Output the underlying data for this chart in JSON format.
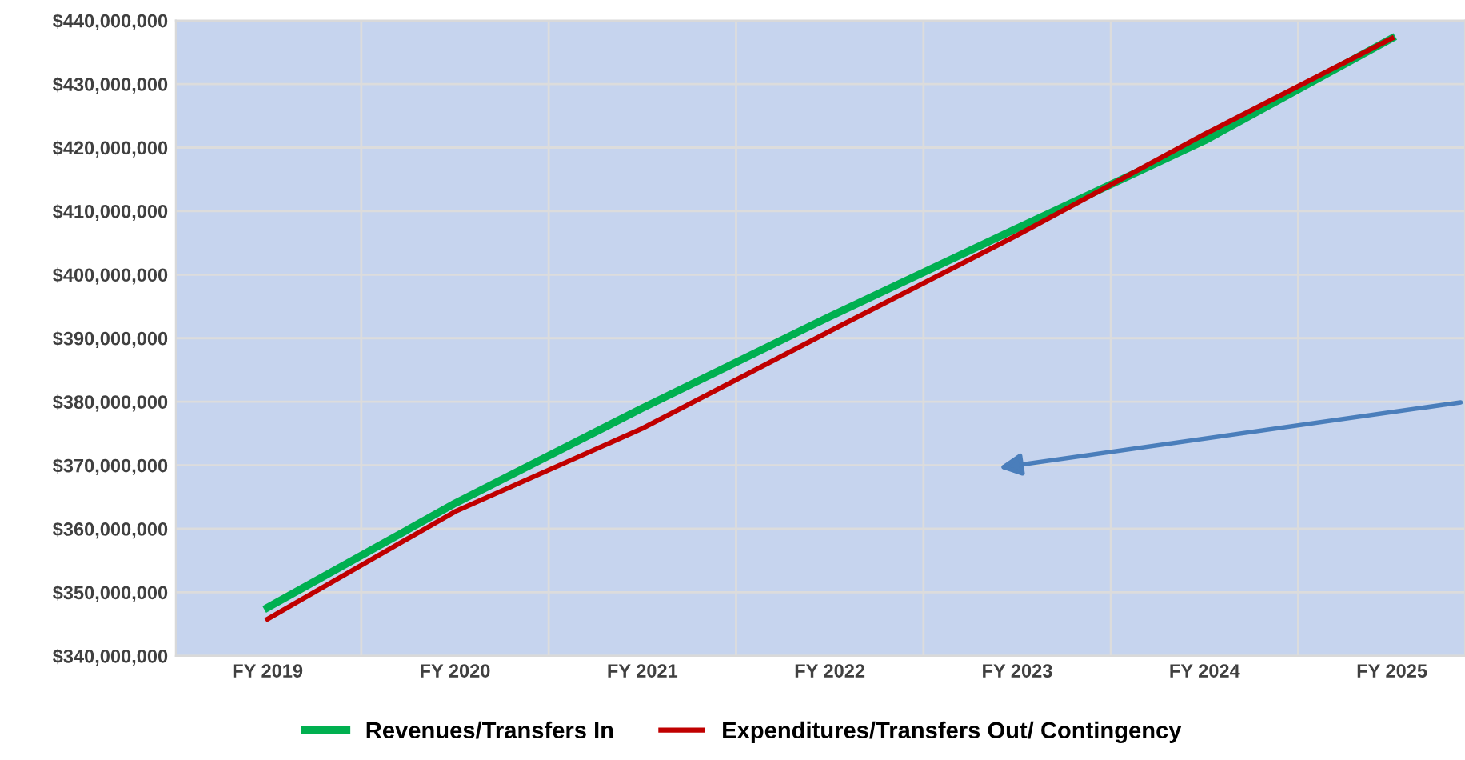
{
  "chart_data": {
    "type": "line",
    "categories": [
      "FY 2019",
      "FY 2020",
      "FY 2021",
      "FY 2022",
      "FY 2023",
      "FY 2024",
      "FY 2025"
    ],
    "series": [
      {
        "name": "Revenues/Transfers In",
        "color": "#00b050",
        "values": [
          347600000,
          364000000,
          379000000,
          393400000,
          407300000,
          421100000,
          437200000
        ]
      },
      {
        "name": "Expenditures/Transfers Out/ Contingency",
        "color": "#c00000",
        "values": [
          345800000,
          362700000,
          375800000,
          391100000,
          406200000,
          422100000,
          437200000
        ]
      }
    ],
    "ylim": [
      340000000,
      440000000
    ],
    "yticks": [
      {
        "value": 340000000,
        "label": "$340,000,000"
      },
      {
        "value": 350000000,
        "label": "$350,000,000"
      },
      {
        "value": 360000000,
        "label": "$360,000,000"
      },
      {
        "value": 370000000,
        "label": "$370,000,000"
      },
      {
        "value": 380000000,
        "label": "$380,000,000"
      },
      {
        "value": 390000000,
        "label": "$390,000,000"
      },
      {
        "value": 400000000,
        "label": "$400,000,000"
      },
      {
        "value": 410000000,
        "label": "$410,000,000"
      },
      {
        "value": 420000000,
        "label": "$420,000,000"
      },
      {
        "value": 430000000,
        "label": "$430,000,000"
      },
      {
        "value": 440000000,
        "label": "$440,000,000"
      }
    ],
    "grid": true,
    "legend": "bottom",
    "marker": "none",
    "line_style": "solid"
  }
}
